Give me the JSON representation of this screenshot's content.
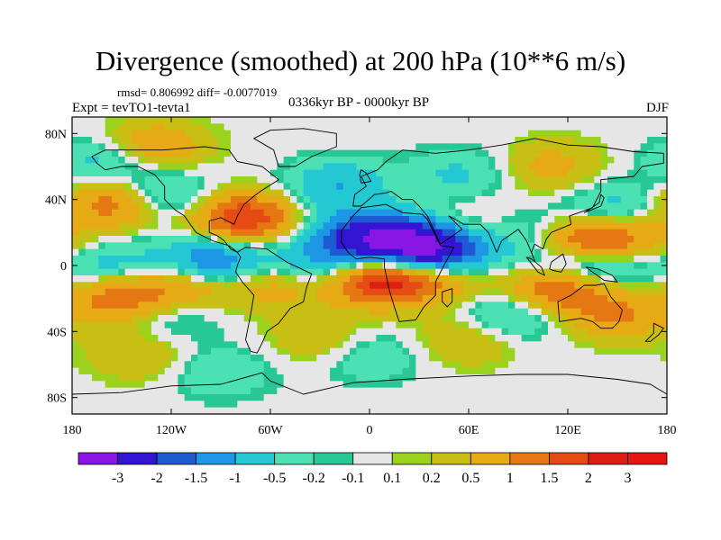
{
  "chart_data": {
    "type": "heatmap",
    "title": "Divergence (smoothed) at 200 hPa (10**6 m/s)",
    "stats_text": "rmsd= 0.806992 diff= -0.0077019",
    "experiment": "Expt = tevTO1-tevta1",
    "period": "0336kyr BP - 0000kyr BP",
    "season": "DJF",
    "xlim": [
      -180,
      180
    ],
    "ylim": [
      -90,
      90
    ],
    "x_ticks": [
      {
        "value": -180,
        "label": "180"
      },
      {
        "value": -120,
        "label": "120W"
      },
      {
        "value": -60,
        "label": "60W"
      },
      {
        "value": 0,
        "label": "0"
      },
      {
        "value": 60,
        "label": "60E"
      },
      {
        "value": 120,
        "label": "120E"
      },
      {
        "value": 180,
        "label": "180"
      }
    ],
    "y_ticks": [
      {
        "value": 80,
        "label": "80N"
      },
      {
        "value": 40,
        "label": "40N"
      },
      {
        "value": 0,
        "label": "0"
      },
      {
        "value": -40,
        "label": "40S"
      },
      {
        "value": -80,
        "label": "80S"
      }
    ],
    "colorbar": {
      "levels": [
        "-3",
        "-2",
        "-1.5",
        "-1",
        "-0.5",
        "-0.2",
        "-0.1",
        "0.1",
        "0.2",
        "0.5",
        "1",
        "1.5",
        "2",
        "3"
      ],
      "colors": [
        "#8a16e6",
        "#3214d2",
        "#1e5ad2",
        "#1e96e6",
        "#23c8d2",
        "#4be1b4",
        "#28c896",
        "#e6e6e6",
        "#9bd21e",
        "#c8be14",
        "#e6aa14",
        "#e67814",
        "#e64b14",
        "#dc1e14",
        "#e61414"
      ]
    },
    "anomaly_centers": [
      {
        "lon": 25,
        "lat": 12,
        "value": -2.5
      },
      {
        "lon": -5,
        "lat": 17,
        "value": -2.0
      },
      {
        "lon": 45,
        "lat": 6,
        "value": -2.0
      },
      {
        "lon": -95,
        "lat": 2,
        "value": -1.8
      },
      {
        "lon": -155,
        "lat": -2,
        "value": -1.0
      },
      {
        "lon": -35,
        "lat": 0,
        "value": -1.2
      },
      {
        "lon": 120,
        "lat": 2,
        "value": -1.5
      },
      {
        "lon": 140,
        "lat": 2,
        "value": -1.3
      },
      {
        "lon": 90,
        "lat": 22,
        "value": -1.0
      },
      {
        "lon": -125,
        "lat": 42,
        "value": -1.0
      },
      {
        "lon": -160,
        "lat": 62,
        "value": -0.8
      },
      {
        "lon": -20,
        "lat": 48,
        "value": -1.0
      },
      {
        "lon": 150,
        "lat": 35,
        "value": -0.8
      },
      {
        "lon": 85,
        "lat": -30,
        "value": -0.8
      },
      {
        "lon": 55,
        "lat": 55,
        "value": -0.6
      },
      {
        "lon": -120,
        "lat": -28,
        "value": -0.6
      },
      {
        "lon": 0,
        "lat": -55,
        "value": -0.5
      },
      {
        "lon": -90,
        "lat": -65,
        "value": -0.5
      },
      {
        "lon": 130,
        "lat": 12,
        "value": 2.5
      },
      {
        "lon": 115,
        "lat": -12,
        "value": 2.0
      },
      {
        "lon": 5,
        "lat": -8,
        "value": 2.3
      },
      {
        "lon": 40,
        "lat": -5,
        "value": 1.5
      },
      {
        "lon": -150,
        "lat": -18,
        "value": 1.6
      },
      {
        "lon": -110,
        "lat": -12,
        "value": 1.2
      },
      {
        "lon": -80,
        "lat": 28,
        "value": 1.3
      },
      {
        "lon": -70,
        "lat": 30,
        "value": 0.8
      },
      {
        "lon": -155,
        "lat": 38,
        "value": 1.5
      },
      {
        "lon": -130,
        "lat": 72,
        "value": 1.0
      },
      {
        "lon": -55,
        "lat": -10,
        "value": 1.0
      },
      {
        "lon": 150,
        "lat": -30,
        "value": 1.0
      },
      {
        "lon": 110,
        "lat": 60,
        "value": 0.7
      },
      {
        "lon": 60,
        "lat": -45,
        "value": 0.6
      },
      {
        "lon": -30,
        "lat": -45,
        "value": 0.5
      },
      {
        "lon": -140,
        "lat": -55,
        "value": 0.5
      },
      {
        "lon": 160,
        "lat": 15,
        "value": 0.8
      },
      {
        "lon": 75,
        "lat": 25,
        "value": 0.8
      }
    ]
  }
}
